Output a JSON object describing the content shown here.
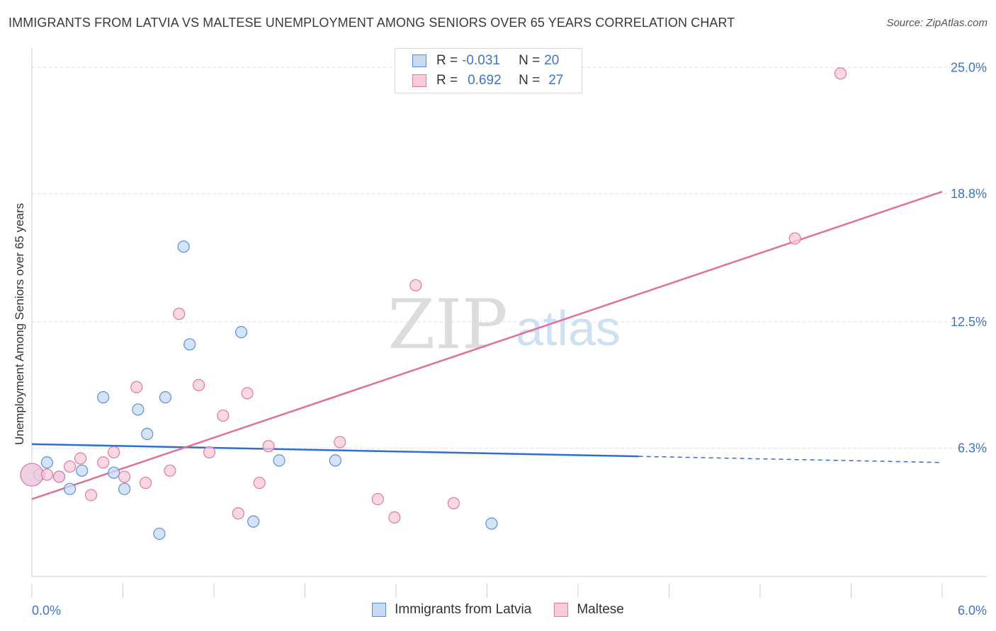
{
  "header": {
    "title": "IMMIGRANTS FROM LATVIA VS MALTESE UNEMPLOYMENT AMONG SENIORS OVER 65 YEARS CORRELATION CHART",
    "source": "Source: ZipAtlas.com"
  },
  "watermark": {
    "zip": "ZIP",
    "atlas": "atlas"
  },
  "legend": {
    "rows": [
      {
        "r_label": "R =",
        "r_value": "-0.031",
        "n_label": "N =",
        "n_value": "20"
      },
      {
        "r_label": "R =",
        "r_value": "0.692",
        "n_label": "N =",
        "n_value": "27"
      }
    ]
  },
  "chart_data": {
    "type": "scatter",
    "title": "IMMIGRANTS FROM LATVIA VS MALTESE UNEMPLOYMENT AMONG SENIORS OVER 65 YEARS CORRELATION CHART",
    "xlabel": "",
    "ylabel": "Unemployment Among Seniors over 65 years",
    "xlim": [
      0,
      6.0
    ],
    "ylim": [
      0,
      25.6
    ],
    "x_tick_labels": [
      "0.0%",
      "6.0%"
    ],
    "y_ticks": [
      6.3,
      12.5,
      18.8,
      25.0
    ],
    "y_tick_labels": [
      "6.3%",
      "12.5%",
      "18.8%",
      "25.0%"
    ],
    "grid": true,
    "series": [
      {
        "name": "Immigrants from Latvia",
        "color": "#5b8fd6",
        "fill": "#c5daf5",
        "R": -0.031,
        "N": 20,
        "points": [
          [
            0.0,
            5.0
          ],
          [
            0.1,
            5.6
          ],
          [
            0.18,
            4.9
          ],
          [
            0.33,
            5.2
          ],
          [
            0.25,
            4.3
          ],
          [
            0.47,
            8.8
          ],
          [
            0.54,
            5.1
          ],
          [
            0.61,
            4.3
          ],
          [
            0.7,
            8.2
          ],
          [
            0.76,
            7.0
          ],
          [
            0.84,
            2.1
          ],
          [
            0.88,
            8.8
          ],
          [
            1.0,
            16.2
          ],
          [
            1.04,
            11.4
          ],
          [
            1.38,
            12.0
          ],
          [
            1.46,
            2.7
          ],
          [
            1.63,
            5.7
          ],
          [
            2.0,
            5.7
          ],
          [
            3.03,
            2.6
          ],
          [
            0.05,
            5.0
          ]
        ],
        "trend": {
          "x0": 0.0,
          "y0": 6.5,
          "x1": 4.0,
          "y1": 5.9,
          "dash_to_x": 6.0,
          "dash_to_y": 5.6
        }
      },
      {
        "name": "Maltese",
        "color": "#e07aa0",
        "fill": "#f8cadb",
        "R": 0.692,
        "N": 27,
        "points": [
          [
            0.0,
            5.0
          ],
          [
            0.1,
            5.0
          ],
          [
            0.18,
            4.9
          ],
          [
            0.25,
            5.4
          ],
          [
            0.32,
            5.8
          ],
          [
            0.39,
            4.0
          ],
          [
            0.47,
            5.6
          ],
          [
            0.54,
            6.1
          ],
          [
            0.61,
            4.9
          ],
          [
            0.69,
            9.3
          ],
          [
            0.75,
            4.6
          ],
          [
            0.91,
            5.2
          ],
          [
            0.97,
            12.9
          ],
          [
            1.1,
            9.4
          ],
          [
            1.17,
            6.1
          ],
          [
            1.26,
            7.9
          ],
          [
            1.36,
            3.1
          ],
          [
            1.42,
            9.0
          ],
          [
            1.5,
            4.6
          ],
          [
            1.56,
            6.4
          ],
          [
            2.03,
            6.6
          ],
          [
            2.28,
            3.8
          ],
          [
            2.39,
            2.9
          ],
          [
            2.53,
            14.3
          ],
          [
            2.78,
            3.6
          ],
          [
            5.03,
            16.6
          ],
          [
            5.33,
            24.7
          ]
        ],
        "trend": {
          "x0": 0.0,
          "y0": 3.8,
          "x1": 6.0,
          "y1": 18.9
        }
      }
    ]
  }
}
